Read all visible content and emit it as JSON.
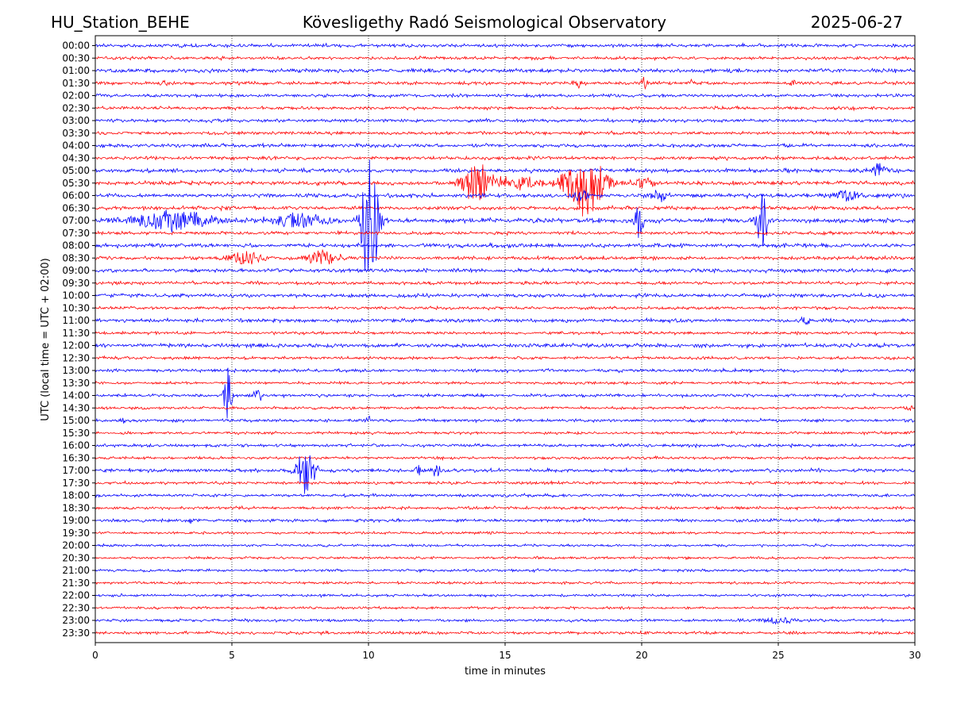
{
  "header": {
    "station": "HU_Station_BEHE",
    "observatory": "Kövesligethy Radó Seismological Observatory",
    "date": "2025-06-27"
  },
  "chart_data": {
    "type": "line",
    "title": "Kövesligethy Radó Seismological Observatory",
    "xlabel": "time in minutes",
    "ylabel": "UTC (local time = UTC + 02:00)",
    "xlim": [
      0,
      30
    ],
    "x_ticks": [
      "0",
      "5",
      "10",
      "15",
      "20",
      "25",
      "30"
    ],
    "x_tick_values": [
      0,
      5,
      10,
      15,
      20,
      25,
      30
    ],
    "grid": "vertical dotted at x ticks",
    "colors": {
      "even_rows": "#0000ff",
      "odd_rows": "#ff0000",
      "grid": "#000000"
    },
    "rows": [
      "00:00",
      "00:30",
      "01:00",
      "01:30",
      "02:00",
      "02:30",
      "03:00",
      "03:30",
      "04:00",
      "04:30",
      "05:00",
      "05:30",
      "06:00",
      "06:30",
      "07:00",
      "07:30",
      "08:00",
      "08:30",
      "09:00",
      "09:30",
      "10:00",
      "10:30",
      "11:00",
      "11:30",
      "12:00",
      "12:30",
      "13:00",
      "13:30",
      "14:00",
      "14:30",
      "15:00",
      "15:30",
      "16:00",
      "16:30",
      "17:00",
      "17:30",
      "18:00",
      "18:30",
      "19:00",
      "19:30",
      "20:00",
      "20:30",
      "21:00",
      "21:30",
      "22:00",
      "22:30",
      "23:00",
      "23:30"
    ],
    "noise_level": [
      1.4,
      1.3,
      1.6,
      1.3,
      1.3,
      1.3,
      1.3,
      1.3,
      1.4,
      1.4,
      1.6,
      1.6,
      1.6,
      1.5,
      1.8,
      1.3,
      1.6,
      1.5,
      1.5,
      1.3,
      1.5,
      1.2,
      1.4,
      1.2,
      1.6,
      1.2,
      1.3,
      1.1,
      1.2,
      1.1,
      1.2,
      1.1,
      1.2,
      1.1,
      1.4,
      1.2,
      1.2,
      1.2,
      1.2,
      1.0,
      1.0,
      1.0,
      1.1,
      1.0,
      1.0,
      1.0,
      1.1,
      1.2
    ],
    "events": [
      {
        "row": 3,
        "t": 2.5,
        "amp": 4,
        "dur": 0.3
      },
      {
        "row": 3,
        "t": 8.8,
        "amp": 3,
        "dur": 0.3
      },
      {
        "row": 3,
        "t": 17.7,
        "amp": 5,
        "dur": 0.3
      },
      {
        "row": 3,
        "t": 20.1,
        "amp": 6,
        "dur": 0.3
      },
      {
        "row": 3,
        "t": 21.8,
        "amp": 4,
        "dur": 0.2
      },
      {
        "row": 3,
        "t": 25.5,
        "amp": 6,
        "dur": 0.2
      },
      {
        "row": 10,
        "t": 28.7,
        "amp": 12,
        "dur": 0.5
      },
      {
        "row": 11,
        "t": 14.0,
        "amp": 25,
        "dur": 1.2
      },
      {
        "row": 11,
        "t": 15.5,
        "amp": 9,
        "dur": 2.0
      },
      {
        "row": 11,
        "t": 17.9,
        "amp": 42,
        "dur": 1.5
      },
      {
        "row": 11,
        "t": 20.0,
        "amp": 6,
        "dur": 1.0
      },
      {
        "row": 12,
        "t": 17.8,
        "amp": 8,
        "dur": 0.6
      },
      {
        "row": 12,
        "t": 20.7,
        "amp": 8,
        "dur": 0.8
      },
      {
        "row": 12,
        "t": 27.5,
        "amp": 7,
        "dur": 1.0
      },
      {
        "row": 14,
        "t": 2.8,
        "amp": 14,
        "dur": 3.0
      },
      {
        "row": 14,
        "t": 7.5,
        "amp": 10,
        "dur": 2.0
      },
      {
        "row": 14,
        "t": 10.05,
        "amp": 100,
        "dur": 0.6
      },
      {
        "row": 14,
        "t": 19.9,
        "amp": 32,
        "dur": 0.3
      },
      {
        "row": 14,
        "t": 24.4,
        "amp": 40,
        "dur": 0.4
      },
      {
        "row": 17,
        "t": 5.5,
        "amp": 9,
        "dur": 1.2
      },
      {
        "row": 17,
        "t": 8.3,
        "amp": 10,
        "dur": 1.2
      },
      {
        "row": 22,
        "t": 26.0,
        "amp": 5,
        "dur": 0.6
      },
      {
        "row": 28,
        "t": 4.85,
        "amp": 38,
        "dur": 0.25
      },
      {
        "row": 28,
        "t": 5.95,
        "amp": 9,
        "dur": 0.3
      },
      {
        "row": 29,
        "t": 29.8,
        "amp": 5,
        "dur": 0.3
      },
      {
        "row": 30,
        "t": 1.0,
        "amp": 5,
        "dur": 0.2
      },
      {
        "row": 30,
        "t": 10.0,
        "amp": 5,
        "dur": 0.3
      },
      {
        "row": 34,
        "t": 7.7,
        "amp": 30,
        "dur": 0.7
      },
      {
        "row": 34,
        "t": 11.8,
        "amp": 5,
        "dur": 0.4
      },
      {
        "row": 34,
        "t": 12.5,
        "amp": 10,
        "dur": 0.3
      },
      {
        "row": 38,
        "t": 3.5,
        "amp": 4,
        "dur": 0.4
      },
      {
        "row": 46,
        "t": 25.0,
        "amp": 4,
        "dur": 1.5
      }
    ]
  }
}
